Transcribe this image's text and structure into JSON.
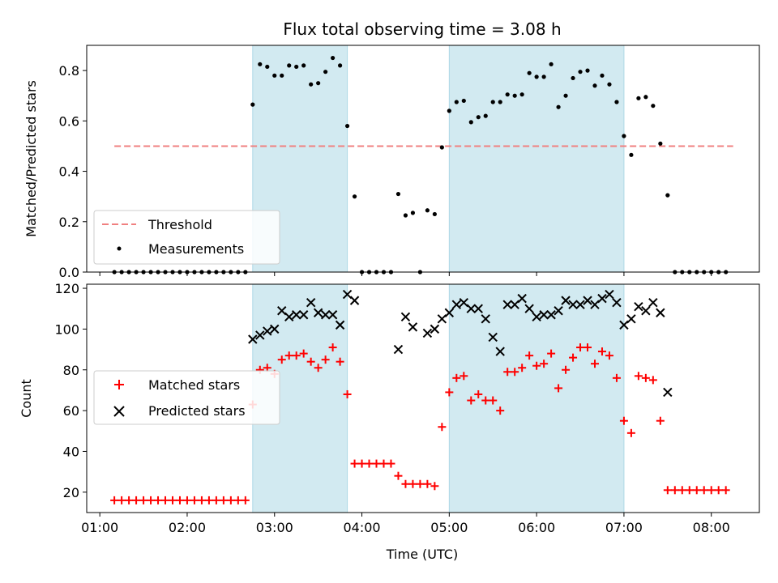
{
  "chart_data": {
    "title": "Flux total observing time = 3.08 h",
    "xlabel": "Time (UTC)",
    "x_ticks": [
      "01:00",
      "02:00",
      "03:00",
      "04:00",
      "05:00",
      "06:00",
      "07:00",
      "08:00"
    ],
    "x_range_hours": [
      0.85,
      8.55
    ],
    "shaded_intervals": [
      [
        "02:45",
        "03:50"
      ],
      [
        "05:00",
        "07:00"
      ]
    ],
    "shade_color": "#add8e6",
    "panels": [
      {
        "type": "scatter",
        "ylabel": "Matched/Predicted stars",
        "ylim": [
          0,
          0.9
        ],
        "yticks": [
          0.0,
          0.2,
          0.4,
          0.6,
          0.8
        ],
        "y_tick_labels": [
          "0.0",
          "0.2",
          "0.4",
          "0.6",
          "0.8"
        ],
        "legend_position": "lower-left",
        "threshold": {
          "name": "Threshold",
          "value": 0.5,
          "x_start": "01:10",
          "x_end": "08:15",
          "color": "#f08080"
        },
        "series": [
          {
            "name": "Measurements",
            "marker": "dot",
            "color": "#000000",
            "points": [
              [
                "01:10",
                0
              ],
              [
                "01:15",
                0
              ],
              [
                "01:20",
                0
              ],
              [
                "01:25",
                0
              ],
              [
                "01:30",
                0
              ],
              [
                "01:35",
                0
              ],
              [
                "01:40",
                0
              ],
              [
                "01:45",
                0
              ],
              [
                "01:50",
                0
              ],
              [
                "01:55",
                0
              ],
              [
                "02:00",
                0
              ],
              [
                "02:05",
                0
              ],
              [
                "02:10",
                0
              ],
              [
                "02:15",
                0
              ],
              [
                "02:20",
                0
              ],
              [
                "02:25",
                0
              ],
              [
                "02:30",
                0
              ],
              [
                "02:35",
                0
              ],
              [
                "02:40",
                0
              ],
              [
                "02:45",
                0.665
              ],
              [
                "02:50",
                0.825
              ],
              [
                "02:55",
                0.815
              ],
              [
                "03:00",
                0.78
              ],
              [
                "03:05",
                0.78
              ],
              [
                "03:10",
                0.82
              ],
              [
                "03:15",
                0.815
              ],
              [
                "03:20",
                0.82
              ],
              [
                "03:25",
                0.745
              ],
              [
                "03:30",
                0.75
              ],
              [
                "03:35",
                0.795
              ],
              [
                "03:40",
                0.85
              ],
              [
                "03:45",
                0.82
              ],
              [
                "03:50",
                0.58
              ],
              [
                "03:55",
                0.3
              ],
              [
                "04:00",
                0
              ],
              [
                "04:05",
                0
              ],
              [
                "04:10",
                0
              ],
              [
                "04:15",
                0
              ],
              [
                "04:20",
                0
              ],
              [
                "04:25",
                0.31
              ],
              [
                "04:30",
                0.225
              ],
              [
                "04:35",
                0.235
              ],
              [
                "04:40",
                0
              ],
              [
                "04:45",
                0.245
              ],
              [
                "04:50",
                0.23
              ],
              [
                "04:55",
                0.495
              ],
              [
                "05:00",
                0.64
              ],
              [
                "05:05",
                0.675
              ],
              [
                "05:10",
                0.68
              ],
              [
                "05:15",
                0.595
              ],
              [
                "05:20",
                0.615
              ],
              [
                "05:25",
                0.62
              ],
              [
                "05:30",
                0.675
              ],
              [
                "05:35",
                0.675
              ],
              [
                "05:40",
                0.705
              ],
              [
                "05:45",
                0.7
              ],
              [
                "05:50",
                0.705
              ],
              [
                "05:55",
                0.79
              ],
              [
                "06:00",
                0.775
              ],
              [
                "06:05",
                0.775
              ],
              [
                "06:10",
                0.825
              ],
              [
                "06:15",
                0.655
              ],
              [
                "06:20",
                0.7
              ],
              [
                "06:25",
                0.77
              ],
              [
                "06:30",
                0.795
              ],
              [
                "06:35",
                0.8
              ],
              [
                "06:40",
                0.74
              ],
              [
                "06:45",
                0.78
              ],
              [
                "06:50",
                0.745
              ],
              [
                "06:55",
                0.675
              ],
              [
                "07:00",
                0.54
              ],
              [
                "07:05",
                0.465
              ],
              [
                "07:10",
                0.69
              ],
              [
                "07:15",
                0.695
              ],
              [
                "07:20",
                0.66
              ],
              [
                "07:25",
                0.51
              ],
              [
                "07:30",
                0.305
              ],
              [
                "07:35",
                0
              ],
              [
                "07:40",
                0
              ],
              [
                "07:45",
                0
              ],
              [
                "07:50",
                0
              ],
              [
                "07:55",
                0
              ],
              [
                "08:00",
                0
              ],
              [
                "08:05",
                0
              ],
              [
                "08:10",
                0
              ]
            ]
          }
        ]
      },
      {
        "type": "scatter",
        "ylabel": "Count",
        "ylim": [
          10,
          122
        ],
        "yticks": [
          20,
          40,
          60,
          80,
          100,
          120
        ],
        "y_tick_labels": [
          "20",
          "40",
          "60",
          "80",
          "100",
          "120"
        ],
        "legend_position": "center-left",
        "series": [
          {
            "name": "Matched stars",
            "marker": "plus",
            "color": "#ff0000",
            "points": [
              [
                "01:10",
                16
              ],
              [
                "01:15",
                16
              ],
              [
                "01:20",
                16
              ],
              [
                "01:25",
                16
              ],
              [
                "01:30",
                16
              ],
              [
                "01:35",
                16
              ],
              [
                "01:40",
                16
              ],
              [
                "01:45",
                16
              ],
              [
                "01:50",
                16
              ],
              [
                "01:55",
                16
              ],
              [
                "02:00",
                16
              ],
              [
                "02:05",
                16
              ],
              [
                "02:10",
                16
              ],
              [
                "02:15",
                16
              ],
              [
                "02:20",
                16
              ],
              [
                "02:25",
                16
              ],
              [
                "02:30",
                16
              ],
              [
                "02:35",
                16
              ],
              [
                "02:40",
                16
              ],
              [
                "02:45",
                63
              ],
              [
                "02:50",
                80
              ],
              [
                "02:55",
                81
              ],
              [
                "03:00",
                78
              ],
              [
                "03:05",
                85
              ],
              [
                "03:10",
                87
              ],
              [
                "03:15",
                87
              ],
              [
                "03:20",
                88
              ],
              [
                "03:25",
                84
              ],
              [
                "03:30",
                81
              ],
              [
                "03:35",
                85
              ],
              [
                "03:40",
                91
              ],
              [
                "03:45",
                84
              ],
              [
                "03:50",
                68
              ],
              [
                "03:55",
                34
              ],
              [
                "04:00",
                34
              ],
              [
                "04:05",
                34
              ],
              [
                "04:10",
                34
              ],
              [
                "04:15",
                34
              ],
              [
                "04:20",
                34
              ],
              [
                "04:25",
                28
              ],
              [
                "04:30",
                24
              ],
              [
                "04:35",
                24
              ],
              [
                "04:40",
                24
              ],
              [
                "04:45",
                24
              ],
              [
                "04:50",
                23
              ],
              [
                "04:55",
                52
              ],
              [
                "05:00",
                69
              ],
              [
                "05:05",
                76
              ],
              [
                "05:10",
                77
              ],
              [
                "05:15",
                65
              ],
              [
                "05:20",
                68
              ],
              [
                "05:25",
                65
              ],
              [
                "05:30",
                65
              ],
              [
                "05:35",
                60
              ],
              [
                "05:40",
                79
              ],
              [
                "05:45",
                79
              ],
              [
                "05:50",
                81
              ],
              [
                "05:55",
                87
              ],
              [
                "06:00",
                82
              ],
              [
                "06:05",
                83
              ],
              [
                "06:10",
                88
              ],
              [
                "06:15",
                71
              ],
              [
                "06:20",
                80
              ],
              [
                "06:25",
                86
              ],
              [
                "06:30",
                91
              ],
              [
                "06:35",
                91
              ],
              [
                "06:40",
                83
              ],
              [
                "06:45",
                89
              ],
              [
                "06:50",
                87
              ],
              [
                "06:55",
                76
              ],
              [
                "07:00",
                55
              ],
              [
                "07:05",
                49
              ],
              [
                "07:10",
                77
              ],
              [
                "07:15",
                76
              ],
              [
                "07:20",
                75
              ],
              [
                "07:25",
                55
              ],
              [
                "07:30",
                21
              ],
              [
                "07:35",
                21
              ],
              [
                "07:40",
                21
              ],
              [
                "07:45",
                21
              ],
              [
                "07:50",
                21
              ],
              [
                "07:55",
                21
              ],
              [
                "08:00",
                21
              ],
              [
                "08:05",
                21
              ],
              [
                "08:10",
                21
              ]
            ]
          },
          {
            "name": "Predicted stars",
            "marker": "x",
            "color": "#000000",
            "points": [
              [
                "02:45",
                95
              ],
              [
                "02:50",
                97
              ],
              [
                "02:55",
                99
              ],
              [
                "03:00",
                100
              ],
              [
                "03:05",
                109
              ],
              [
                "03:10",
                106
              ],
              [
                "03:15",
                107
              ],
              [
                "03:20",
                107
              ],
              [
                "03:25",
                113
              ],
              [
                "03:30",
                108
              ],
              [
                "03:35",
                107
              ],
              [
                "03:40",
                107
              ],
              [
                "03:45",
                102
              ],
              [
                "03:50",
                117
              ],
              [
                "03:55",
                114
              ],
              [
                "04:25",
                90
              ],
              [
                "04:30",
                106
              ],
              [
                "04:35",
                101
              ],
              [
                "04:45",
                98
              ],
              [
                "04:50",
                100
              ],
              [
                "04:55",
                105
              ],
              [
                "05:00",
                108
              ],
              [
                "05:05",
                112
              ],
              [
                "05:10",
                113
              ],
              [
                "05:15",
                110
              ],
              [
                "05:20",
                110
              ],
              [
                "05:25",
                105
              ],
              [
                "05:30",
                96
              ],
              [
                "05:35",
                89
              ],
              [
                "05:40",
                112
              ],
              [
                "05:45",
                112
              ],
              [
                "05:50",
                115
              ],
              [
                "05:55",
                110
              ],
              [
                "06:00",
                106
              ],
              [
                "06:05",
                107
              ],
              [
                "06:10",
                107
              ],
              [
                "06:15",
                109
              ],
              [
                "06:20",
                114
              ],
              [
                "06:25",
                112
              ],
              [
                "06:30",
                112
              ],
              [
                "06:35",
                114
              ],
              [
                "06:40",
                112
              ],
              [
                "06:45",
                115
              ],
              [
                "06:50",
                117
              ],
              [
                "06:55",
                113
              ],
              [
                "07:00",
                102
              ],
              [
                "07:05",
                105
              ],
              [
                "07:10",
                111
              ],
              [
                "07:15",
                109
              ],
              [
                "07:20",
                113
              ],
              [
                "07:25",
                108
              ],
              [
                "07:30",
                69
              ]
            ]
          }
        ]
      }
    ]
  }
}
